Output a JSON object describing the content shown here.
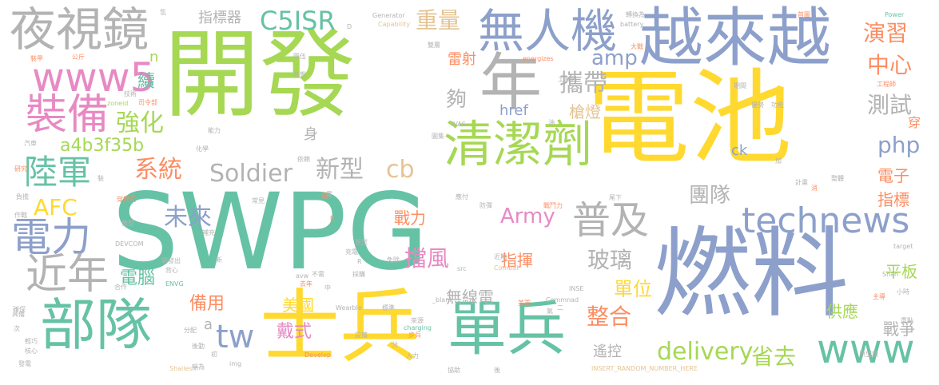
{
  "palette": {
    "green": "#a6d854",
    "teal": "#66c2a5",
    "blue": "#8da0cb",
    "orange": "#fc8d62",
    "pink": "#e78ac3",
    "yellow": "#ffd92f",
    "tan": "#e5c494",
    "gray": "#b3b3b3"
  },
  "words": {
    "w1": "開發",
    "w2": "電池",
    "w3": "SWPG",
    "w4": "燃料",
    "w5": "越來越",
    "w6": "士兵",
    "w7": "單兵",
    "w8": "部隊",
    "w9": "年",
    "w10": "清潔劑",
    "w11": "夜視鏡",
    "w12": "無人機",
    "w13": "www5",
    "w14": "裝備",
    "w15": "technews",
    "w16": "普及",
    "w17": "電力",
    "w18": "近年",
    "w19": "www",
    "w20": "陸軍",
    "w21": "tw",
    "w22": "delivery",
    "w23": "未來",
    "w24": "Soldier",
    "w25": "C5ISR",
    "w26": "強化",
    "w27": "重量",
    "w28": "攜帶",
    "w29": "演習",
    "w30": "中心",
    "w31": "測試",
    "w32": "php",
    "w33": "a4b3f35b",
    "w34": "系統",
    "w35": "新型",
    "w36": "cb",
    "w37": "玻璃",
    "w38": "團隊",
    "w39": "擋風",
    "w40": "整合",
    "w41": "省去",
    "w42": "AFC",
    "w43": "Army",
    "w44": "amp",
    "w45": "指標器",
    "w46": "備用",
    "w47": "戴式",
    "w48": "單位",
    "w49": "電腦",
    "w50": "指揮",
    "w51": "美國",
    "w52": "無線電",
    "w53": "遙控",
    "w54": "供應",
    "w55": "戰爭",
    "w56": "平板",
    "w57": "電子",
    "w58": "指標",
    "w59": "身",
    "w60": "夠",
    "w61": "續",
    "w62": "槍燈",
    "w63": "雷射",
    "w64": "href",
    "w65": "ck",
    "w66": "戰力",
    "w67": "穿",
    "w68": "n",
    "w69": "a",
    "w70": "能力",
    "w71": "研究",
    "w72": "Generator",
    "w73": "Capability",
    "w74": "Power",
    "w75": "battery",
    "w76": "energizes",
    "w77": "IVAS",
    "w78": "DEVCOM",
    "w79": "ENVG",
    "w80": "Combat",
    "w81": "Wearble",
    "w82": "charging",
    "w83": "Commnad",
    "w84": "INSE",
    "w85": "INSERT_RANDOM_NUMBER_HERE",
    "w86": "target",
    "w87": "Shah",
    "w88": "Shailesh",
    "w89": "Develop",
    "w90": "_blank",
    "w91": "src",
    "w92": "img",
    "w93": "zoneid",
    "w94": "avw",
    "w95": "工業界",
    "w96": "工程師",
    "w97": "原型版",
    "w98": "人力",
    "w99": "步兵",
    "w100": "協助",
    "w101": "標準",
    "w102": "設備",
    "w103": "來源",
    "w104": "戰鬥力",
    "w105": "首圖",
    "w106": "轉換為",
    "w107": "大戰",
    "w108": "期間",
    "w109": "裝甲",
    "w110": "公斤",
    "w111": "汽車",
    "w112": "輕巧",
    "w113": "核心",
    "w114": "發電",
    "w115": "作戰",
    "w116": "後勤",
    "w117": "稱為",
    "w118": "分配",
    "w119": "原型",
    "w120": "免除",
    "w121": "近期",
    "w122": "充電",
    "w123": "應付",
    "w124": "微型",
    "w125": "穿戴式",
    "w126": "電",
    "w127": "油",
    "w128": "D",
    "w129": "B",
    "w130": "R",
    "w131": "加",
    "w132": "次",
    "w133": "新",
    "w134": "初",
    "w135": "中",
    "w136": "二",
    "w137": "後",
    "w138": "主導",
    "w139": "小時",
    "w140": "計畫",
    "w141": "整體",
    "w142": "功能",
    "w143": "優勢",
    "w144": "依賴",
    "w145": "化學",
    "w146": "確保",
    "w147": "開發出",
    "w148": "背心",
    "w149": "負擔",
    "w150": "補充",
    "w151": "防彈",
    "w152": "圖集",
    "w153": "技術",
    "w154": "司令部",
    "w155": "隊伍",
    "w156": "動態",
    "w157": "雙層",
    "w158": "美軍",
    "w159": "氣",
    "w160": "常見",
    "w161": "去年",
    "w162": "不需",
    "w163": "合作",
    "w164": "尾下",
    "w165": "具備",
    "w166": "採購",
    "w167": "裝",
    "w168": "消",
    "w169": "重點",
    "w170": "氫",
    "w171": "分",
    "w172": "電"
  }
}
